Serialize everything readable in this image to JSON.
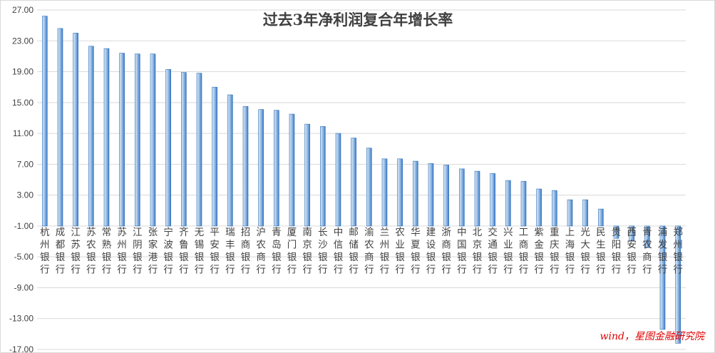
{
  "chart_data": {
    "type": "bar",
    "title": "过去3年净利润复合年增长率",
    "xlabel": "",
    "ylabel": "",
    "ylim": [
      -17,
      27
    ],
    "yticks": [
      "27.00",
      "23.00",
      "19.00",
      "15.00",
      "11.00",
      "7.00",
      "3.00",
      "-1.00",
      "-5.00",
      "-9.00",
      "-13.00",
      "-17.00"
    ],
    "grid": true,
    "legend": "none",
    "categories": [
      "杭州银行",
      "成都银行",
      "江苏银行",
      "苏农银行",
      "常熟银行",
      "苏州银行",
      "江阴银行",
      "张家港行",
      "宁波银行",
      "齐鲁银行",
      "无锡银行",
      "平安银行",
      "瑞丰银行",
      "招商银行",
      "沪农商行",
      "青岛银行",
      "厦门银行",
      "南京银行",
      "长沙银行",
      "中信银行",
      "邮储银行",
      "渝农商行",
      "兰州银行",
      "农业银行",
      "华夏银行",
      "建设银行",
      "浙商银行",
      "中国银行",
      "北京银行",
      "交通银行",
      "兴业银行",
      "工商银行",
      "紫金银行",
      "重庆银行",
      "上海银行",
      "光大银行",
      "民生银行",
      "贵阳银行",
      "西安银行",
      "青农商行",
      "浦发银行",
      "郑州银行"
    ],
    "values": [
      26.2,
      24.6,
      24.0,
      22.3,
      22.0,
      21.4,
      21.3,
      21.3,
      19.3,
      18.9,
      18.8,
      17.0,
      16.0,
      14.5,
      14.1,
      14.0,
      13.5,
      12.2,
      11.9,
      11.0,
      10.4,
      9.1,
      7.7,
      7.7,
      7.4,
      7.1,
      6.9,
      6.4,
      6.1,
      5.8,
      4.9,
      4.8,
      3.8,
      3.6,
      2.4,
      2.4,
      1.2,
      -2.6,
      -2.9,
      -3.8,
      -14.4,
      -16.2
    ],
    "source_note": "wind，星图金融研究院",
    "colors": {
      "bar_light": "#dbe9f7",
      "bar_mid": "#9fc2e8",
      "bar_dark": "#3d7cc7",
      "bar_edge": "#2e6db4",
      "grid": "#d9d9d9"
    }
  }
}
